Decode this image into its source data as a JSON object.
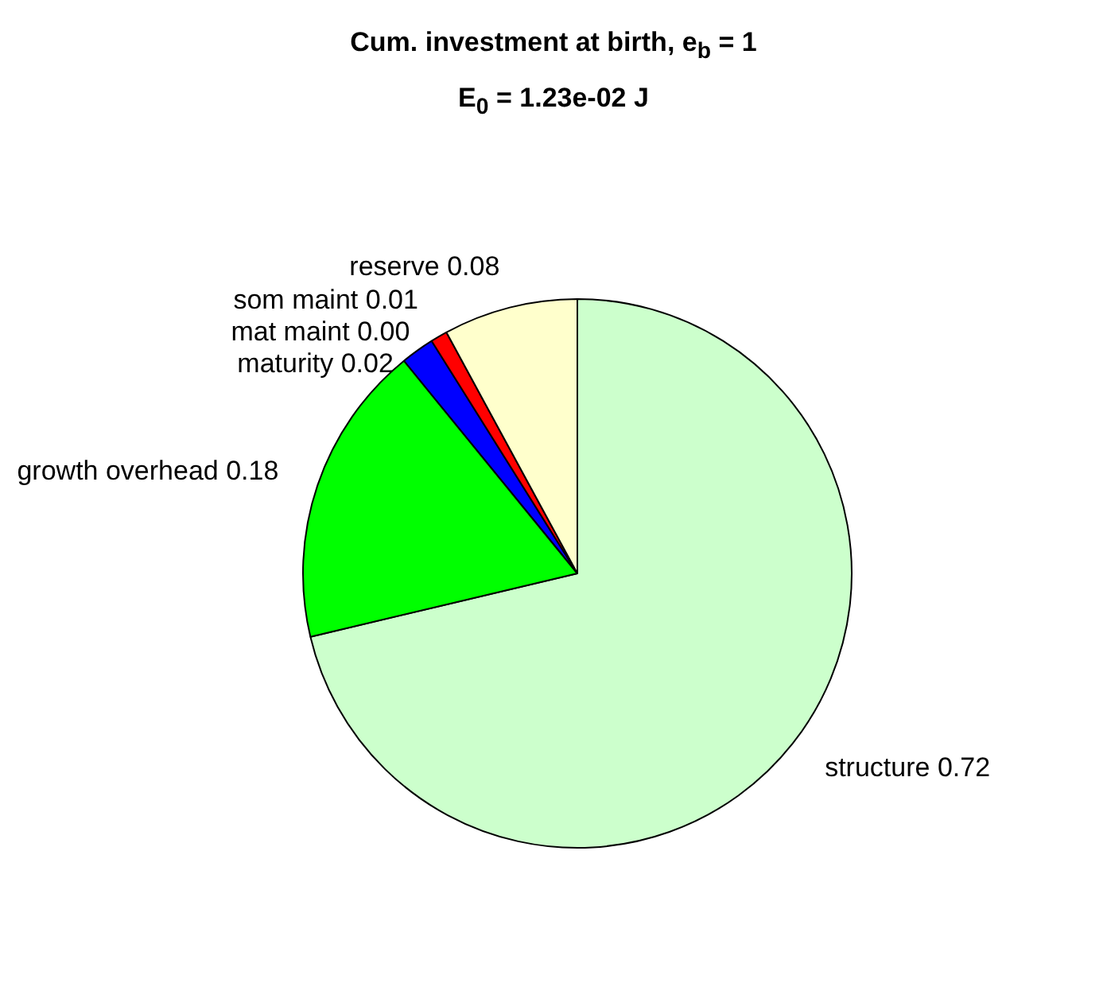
{
  "chart_data": {
    "type": "pie",
    "title": "Cum. investment at birth, e$_{b}$ = 1",
    "subtitle": "E$_{0}$ = 1.23e-02 J",
    "categories": [
      "structure",
      "growth overhead",
      "maturity",
      "mat maint",
      "som maint",
      "reserve"
    ],
    "values": [
      0.72,
      0.18,
      0.02,
      0.0,
      0.01,
      0.08
    ],
    "value_labels": [
      "0.72",
      "0.18",
      "0.02",
      "0.00",
      "0.01",
      "0.08"
    ],
    "colors": [
      "#ccffcc",
      "#00ff00",
      "#0000ff",
      "#ff00ff",
      "#ff0000",
      "#ffffcc"
    ],
    "legend": false
  }
}
